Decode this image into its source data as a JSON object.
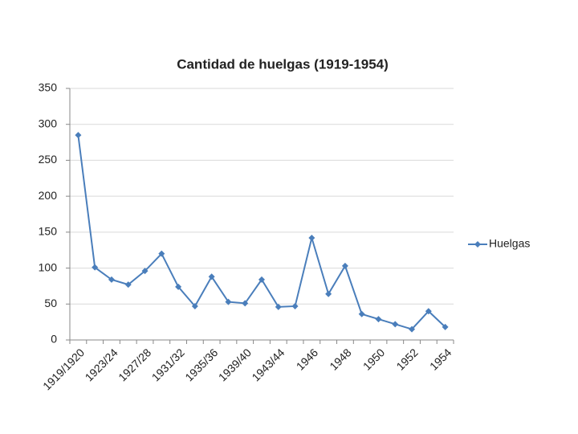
{
  "chart_data": {
    "type": "line",
    "title": "Cantidad de huelgas (1919-1954)",
    "categories": [
      "1919/1920",
      null,
      "1923/24",
      null,
      "1927/28",
      null,
      "1931/32",
      null,
      "1935/36",
      null,
      "1939/40",
      null,
      "1943/44",
      null,
      "1946",
      null,
      "1948",
      null,
      "1950",
      null,
      "1952",
      null,
      "1954"
    ],
    "series": [
      {
        "name": "Huelgas",
        "color": "#4a7ebb",
        "values": [
          285,
          101,
          84,
          77,
          96,
          120,
          74,
          47,
          88,
          53,
          51,
          84,
          46,
          47,
          142,
          64,
          103,
          36,
          29,
          22,
          15,
          40,
          18
        ]
      }
    ],
    "ylim": [
      0,
      350
    ],
    "yticks": [
      0,
      50,
      100,
      150,
      200,
      250,
      300,
      350
    ],
    "grid": true,
    "legend": "right"
  }
}
